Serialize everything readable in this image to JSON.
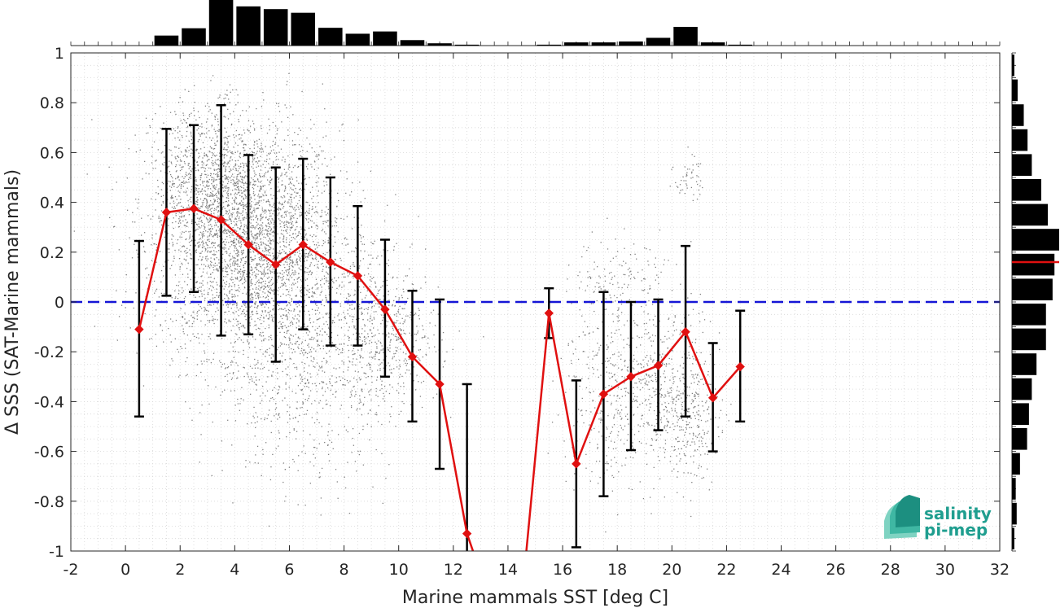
{
  "chart_data": {
    "type": "scatter",
    "xlabel": "Marine mammals SST [deg C]",
    "ylabel": "Δ SSS (SAT-Marine mammals)",
    "xlim": [
      -2,
      32
    ],
    "ylim": [
      -1,
      1
    ],
    "x_ticks": [
      -2,
      0,
      2,
      4,
      6,
      8,
      10,
      12,
      14,
      16,
      18,
      20,
      22,
      24,
      26,
      28,
      30,
      32
    ],
    "y_ticks": [
      -1,
      -0.8,
      -0.6,
      -0.4,
      -0.2,
      0,
      0.2,
      0.4,
      0.6,
      0.8,
      1
    ],
    "grid": true,
    "zero_line": {
      "y": 0,
      "color": "#1515d6",
      "style": "dashed"
    },
    "series": [
      {
        "kind": "binned-mean-with-std",
        "color": "#e01010",
        "x": [
          0.5,
          1.5,
          2.5,
          3.5,
          4.5,
          5.5,
          6.5,
          7.5,
          8.5,
          9.5,
          10.5,
          11.5,
          12.5,
          13.5,
          14.5,
          15.5,
          16.5,
          17.5,
          18.5,
          19.5,
          20.5,
          21.5,
          22.5
        ],
        "mean": [
          -0.11,
          0.36,
          0.375,
          0.33,
          0.23,
          0.15,
          0.23,
          0.16,
          0.105,
          -0.03,
          -0.22,
          -0.33,
          -0.93,
          -1.25,
          -1.2,
          -0.045,
          -0.65,
          -0.37,
          -0.3,
          -0.255,
          -0.12,
          -0.385,
          -0.26
        ],
        "err_low": [
          -0.46,
          0.025,
          0.04,
          -0.135,
          -0.13,
          -0.24,
          -0.11,
          -0.175,
          -0.175,
          -0.3,
          -0.48,
          -0.67,
          -1.53,
          null,
          null,
          -0.145,
          -0.985,
          -0.78,
          -0.595,
          -0.515,
          -0.46,
          -0.6,
          -0.48
        ],
        "err_high": [
          0.245,
          0.695,
          0.71,
          0.79,
          0.59,
          0.54,
          0.575,
          0.5,
          0.385,
          0.25,
          0.045,
          0.01,
          -0.33,
          null,
          null,
          0.055,
          -0.315,
          0.04,
          0.0,
          0.01,
          0.225,
          -0.165,
          -0.035
        ]
      },
      {
        "kind": "scatter-cloud",
        "color": "#808080",
        "clusters": [
          {
            "cx": 4.5,
            "cy": 0.25,
            "sx": 1.7,
            "sy": 0.23,
            "n": 3200
          },
          {
            "cx": 3.0,
            "cy": 0.5,
            "sx": 1.0,
            "sy": 0.15,
            "n": 700
          },
          {
            "cx": 6.5,
            "cy": -0.2,
            "sx": 1.6,
            "sy": 0.25,
            "n": 900
          },
          {
            "cx": 9.5,
            "cy": -0.15,
            "sx": 1.0,
            "sy": 0.15,
            "n": 500
          },
          {
            "cx": 17.5,
            "cy": -0.35,
            "sx": 0.8,
            "sy": 0.2,
            "n": 300
          },
          {
            "cx": 19.5,
            "cy": -0.3,
            "sx": 0.8,
            "sy": 0.2,
            "n": 350
          },
          {
            "cx": 20.5,
            "cy": -0.45,
            "sx": 0.6,
            "sy": 0.12,
            "n": 300
          },
          {
            "cx": 18.0,
            "cy": 0.1,
            "sx": 0.8,
            "sy": 0.08,
            "n": 120
          },
          {
            "cx": 20.6,
            "cy": 0.5,
            "sx": 0.25,
            "sy": 0.05,
            "n": 50
          }
        ]
      }
    ],
    "top_histogram": {
      "bin_centers": [
        0.5,
        1.5,
        2.5,
        3.5,
        4.5,
        5.5,
        6.5,
        7.5,
        8.5,
        9.5,
        10.5,
        11.5,
        12.5,
        13.5,
        14.5,
        15.5,
        16.5,
        17.5,
        18.5,
        19.5,
        20.5,
        21.5,
        22.5
      ],
      "rel_counts": [
        0.0,
        0.22,
        0.38,
        1.0,
        0.86,
        0.8,
        0.72,
        0.39,
        0.26,
        0.31,
        0.12,
        0.05,
        0.02,
        0.0,
        0.0,
        0.02,
        0.07,
        0.07,
        0.09,
        0.17,
        0.41,
        0.07,
        0.02
      ]
    },
    "right_histogram": {
      "bin_centers": [
        0.95,
        0.85,
        0.75,
        0.65,
        0.55,
        0.45,
        0.35,
        0.25,
        0.15,
        0.05,
        -0.05,
        -0.15,
        -0.25,
        -0.35,
        -0.45,
        -0.55,
        -0.65,
        -0.75,
        -0.85,
        -0.95
      ],
      "rel_counts": [
        0.05,
        0.12,
        0.25,
        0.33,
        0.42,
        0.62,
        0.76,
        1.0,
        0.9,
        0.86,
        0.72,
        0.72,
        0.52,
        0.42,
        0.36,
        0.32,
        0.17,
        0.08,
        0.1,
        0.05
      ],
      "median": 0.16,
      "median_color": "#e01010"
    }
  },
  "logo": {
    "line1": "salinity",
    "line2": "pi-mep"
  }
}
